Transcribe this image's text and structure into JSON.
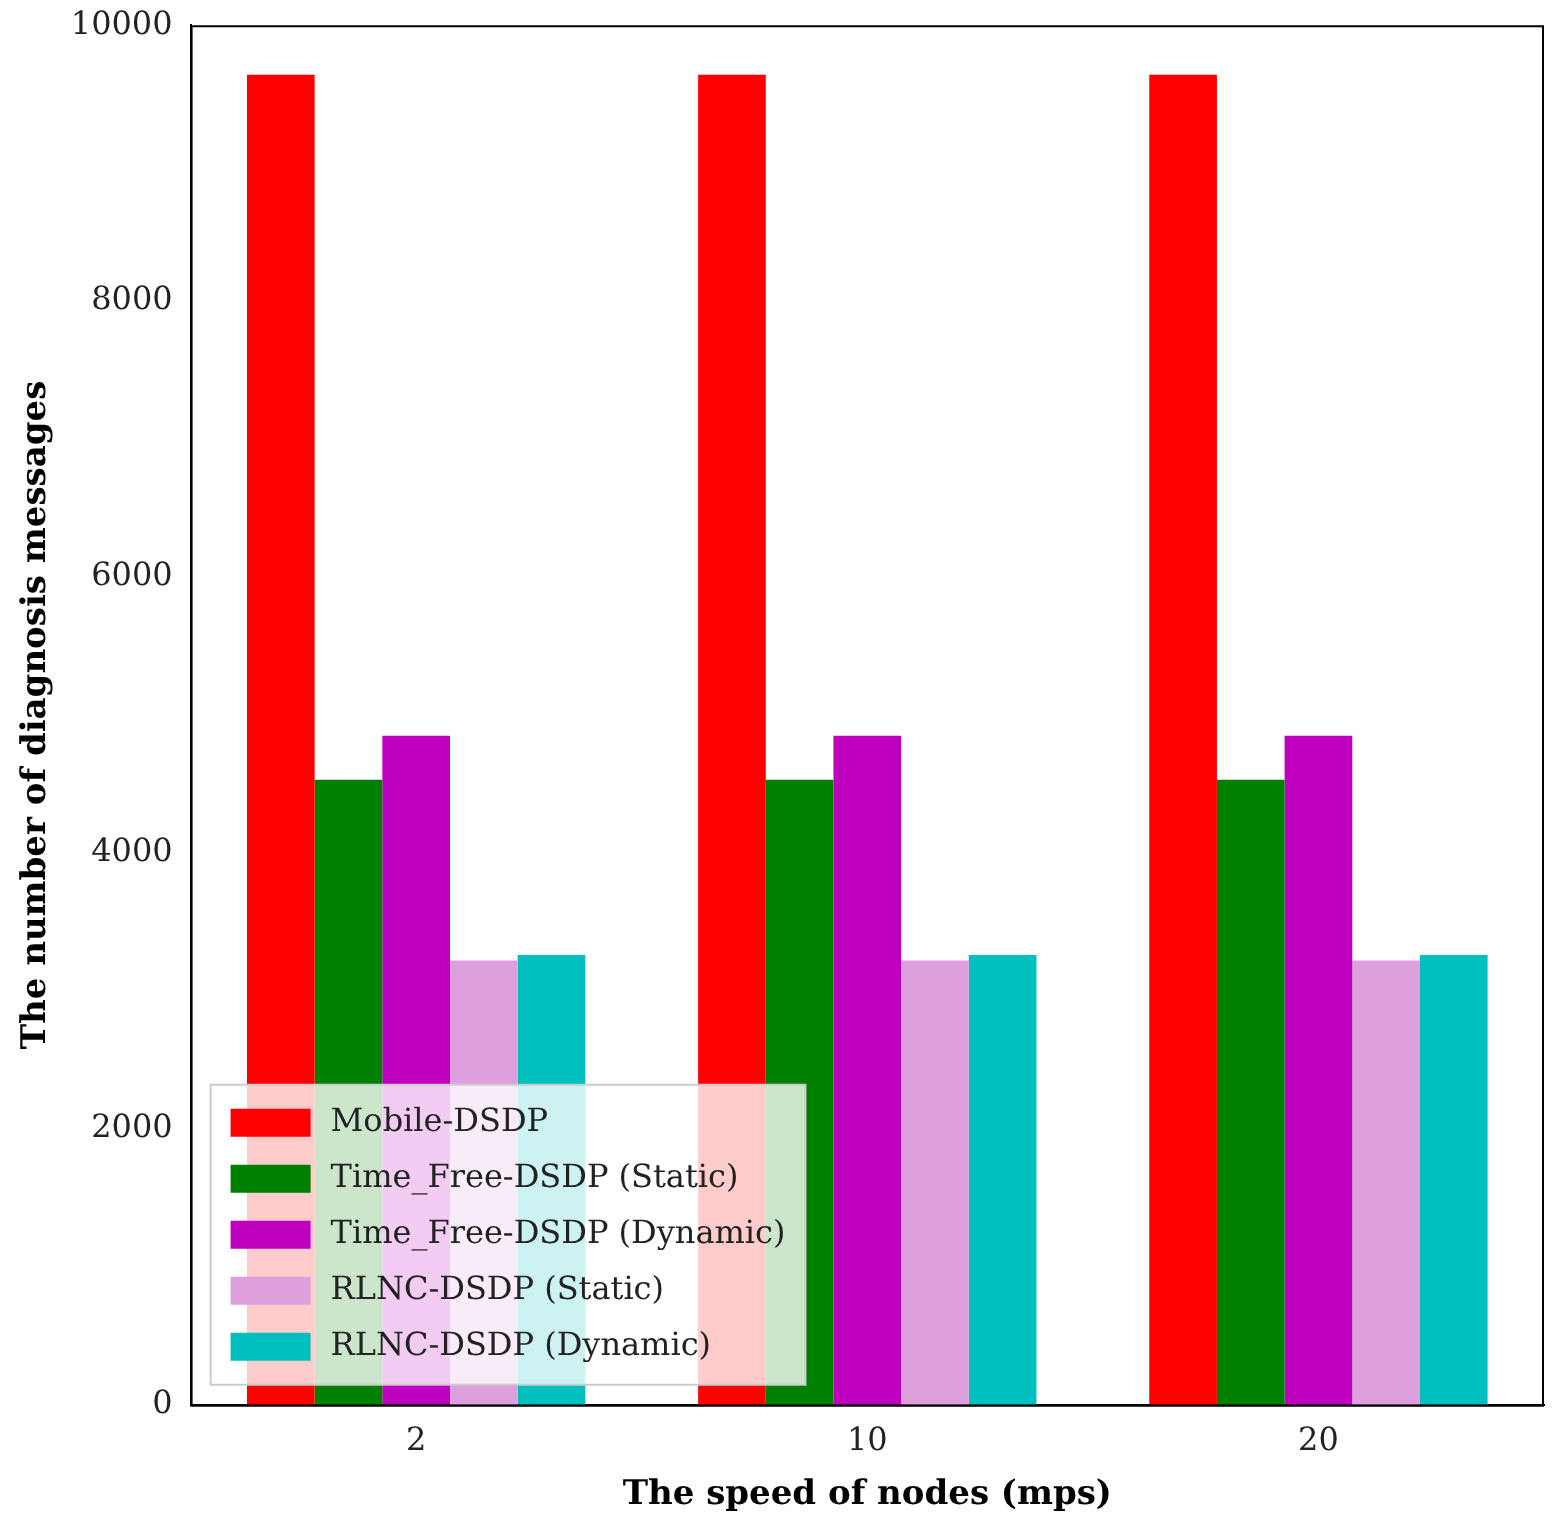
{
  "chart_data": {
    "type": "bar",
    "xlabel": "The speed of nodes (mps)",
    "ylabel": "The number of diagnosis messages",
    "categories": [
      "2",
      "10",
      "20"
    ],
    "series": [
      {
        "name": "Mobile-DSDP",
        "color": "#ff0000",
        "values": [
          9640,
          9640,
          9640
        ]
      },
      {
        "name": "Time_Free-DSDP (Static)",
        "color": "#008000",
        "values": [
          4530,
          4530,
          4530
        ]
      },
      {
        "name": "Time_Free-DSDP (Dynamic)",
        "color": "#bf00bf",
        "values": [
          4850,
          4850,
          4850
        ]
      },
      {
        "name": "RLNC-DSDP (Static)",
        "color": "#dda0dd",
        "values": [
          3220,
          3220,
          3220
        ]
      },
      {
        "name": "RLNC-DSDP (Dynamic)",
        "color": "#00bfbf",
        "values": [
          3260,
          3260,
          3260
        ]
      }
    ],
    "ylim": [
      0,
      10000
    ],
    "yticks": [
      0,
      2000,
      4000,
      6000,
      8000,
      10000
    ],
    "grid": false,
    "legend": "bottom left"
  }
}
